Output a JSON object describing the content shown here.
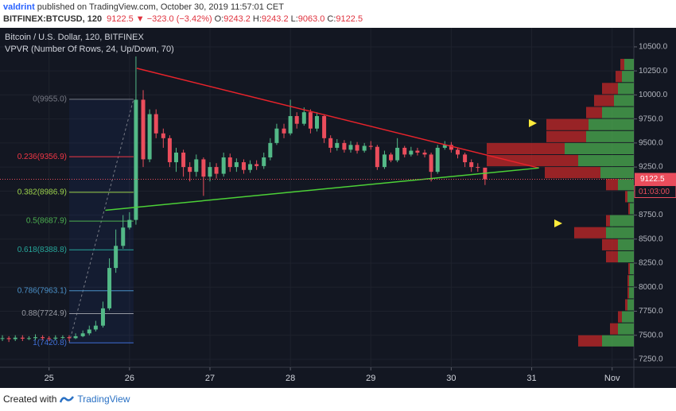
{
  "header": {
    "author": "valdrint",
    "published": "published on TradingView.com, October 30, 2019 11:57:01 CET",
    "symbol": "BITFINEX:BTCUSD, 120",
    "last": "9122.5",
    "direction": "▼",
    "change": "−323.0 (−3.42%)",
    "ohlc": [
      {
        "key": "O:",
        "value": "9243.2"
      },
      {
        "key": "H:",
        "value": "9243.2"
      },
      {
        "key": "L:",
        "value": "9063.0"
      },
      {
        "key": "C:",
        "value": "9122.5"
      }
    ]
  },
  "chart_data": {
    "type": "candlestick",
    "title": "Bitcoin / U.S. Dollar, 120, BITFINEX",
    "indicator": "VPVR (Number Of Rows, 24, Up/Down, 70)",
    "countdown": "01:03:00",
    "xlim": [
      24.39,
      32.27
    ],
    "ylim": [
      7167,
      10698
    ],
    "grid": true,
    "xticks": [
      25,
      26,
      27,
      28,
      29,
      30,
      31,
      {
        "value": 32,
        "label": "Nov"
      }
    ],
    "yticks": [
      {
        "value": 7250,
        "label": "7250.0"
      },
      {
        "value": 7500,
        "label": "7500.0"
      },
      {
        "value": 7750,
        "label": "7750.0"
      },
      {
        "value": 8000,
        "label": "8000.0"
      },
      {
        "value": 8250,
        "label": "8250.0"
      },
      {
        "value": 8500,
        "label": "8500.0"
      },
      {
        "value": 8750,
        "label": "8750.0"
      },
      {
        "value": 9000,
        "label": "9000.0"
      },
      {
        "value": 9250,
        "label": "9250.0"
      },
      {
        "value": 9500,
        "label": "9500.0"
      },
      {
        "value": 9750,
        "label": "9750.0"
      },
      {
        "value": 10000,
        "label": "10000.0"
      },
      {
        "value": 10250,
        "label": "10250.0"
      },
      {
        "value": 10500,
        "label": "10500.0"
      }
    ],
    "series": [
      {
        "name": "BTCUSD",
        "up_color": "#53b987",
        "down_color": "#eb4d5c",
        "x": [
          24.42,
          24.5,
          24.58,
          24.67,
          24.75,
          24.83,
          24.92,
          25.0,
          25.08,
          25.17,
          25.25,
          25.33,
          25.42,
          25.5,
          25.58,
          25.67,
          25.75,
          25.83,
          25.92,
          26.0,
          26.08,
          26.17,
          26.25,
          26.33,
          26.42,
          26.5,
          26.58,
          26.67,
          26.75,
          26.83,
          26.92,
          27.0,
          27.08,
          27.17,
          27.25,
          27.33,
          27.42,
          27.5,
          27.58,
          27.67,
          27.75,
          27.83,
          27.92,
          28.0,
          28.08,
          28.17,
          28.25,
          28.33,
          28.42,
          28.5,
          28.58,
          28.67,
          28.75,
          28.83,
          28.92,
          29.0,
          29.08,
          29.17,
          29.25,
          29.33,
          29.42,
          29.5,
          29.58,
          29.67,
          29.75,
          29.83,
          29.92,
          30.0,
          30.08,
          30.17,
          30.25,
          30.33,
          30.42
        ],
        "open": [
          7465,
          7470,
          7460,
          7475,
          7465,
          7470,
          7480,
          7470,
          7465,
          7475,
          7480,
          7470,
          7490,
          7520,
          7560,
          7600,
          7780,
          8200,
          8430,
          8620,
          8700,
          9950,
          9330,
          9800,
          9600,
          9550,
          9300,
          9400,
          9250,
          9200,
          9330,
          9150,
          9250,
          9180,
          9350,
          9250,
          9300,
          9220,
          9280,
          9260,
          9350,
          9500,
          9650,
          9600,
          9780,
          9700,
          9820,
          9650,
          9780,
          9550,
          9450,
          9500,
          9430,
          9480,
          9420,
          9470,
          9460,
          9250,
          9380,
          9320,
          9450,
          9380,
          9420,
          9400,
          9380,
          9200,
          9450,
          9480,
          9430,
          9380,
          9300,
          9250,
          9243.2
        ],
        "high": [
          7500,
          7490,
          7500,
          7500,
          7490,
          7510,
          7500,
          7490,
          7500,
          7500,
          7500,
          7520,
          7550,
          7600,
          7650,
          7850,
          8300,
          8600,
          8750,
          8780,
          10400,
          10050,
          9850,
          9850,
          9650,
          9580,
          9450,
          9430,
          9300,
          9380,
          9350,
          9300,
          9290,
          9400,
          9390,
          9340,
          9330,
          9320,
          9320,
          9400,
          9550,
          9700,
          9700,
          9950,
          9820,
          9870,
          9850,
          9820,
          9800,
          9580,
          9540,
          9530,
          9520,
          9510,
          9500,
          9520,
          9480,
          9420,
          9400,
          9550,
          9470,
          9460,
          9450,
          9430,
          9400,
          9480,
          9520,
          9510,
          9450,
          9400,
          9330,
          9290,
          9243.2
        ],
        "low": [
          7440,
          7430,
          7440,
          7440,
          7450,
          7450,
          7450,
          7440,
          7450,
          7460,
          7440,
          7460,
          7480,
          7500,
          7540,
          7580,
          7760,
          8150,
          8400,
          8600,
          8650,
          9250,
          9300,
          9550,
          9450,
          9250,
          9200,
          9150,
          9100,
          9150,
          8950,
          9100,
          9130,
          9150,
          9200,
          9200,
          9180,
          9190,
          9220,
          9230,
          9320,
          9480,
          9550,
          9580,
          9650,
          9680,
          9600,
          9620,
          9500,
          9400,
          9420,
          9400,
          9400,
          9390,
          9400,
          9430,
          9220,
          9230,
          9300,
          9300,
          9350,
          9360,
          9370,
          9350,
          9100,
          9180,
          9430,
          9400,
          9340,
          9250,
          9200,
          9200,
          9063
        ],
        "close": [
          7470,
          7460,
          7475,
          7465,
          7470,
          7480,
          7470,
          7465,
          7475,
          7480,
          7470,
          7490,
          7520,
          7560,
          7600,
          7780,
          8200,
          8430,
          8620,
          8700,
          9950,
          9330,
          9800,
          9600,
          9550,
          9300,
          9400,
          9250,
          9200,
          9330,
          9150,
          9250,
          9180,
          9350,
          9250,
          9300,
          9220,
          9280,
          9260,
          9350,
          9500,
          9650,
          9600,
          9780,
          9700,
          9820,
          9650,
          9780,
          9550,
          9450,
          9500,
          9430,
          9480,
          9420,
          9470,
          9460,
          9250,
          9380,
          9320,
          9450,
          9380,
          9420,
          9400,
          9380,
          9200,
          9450,
          9480,
          9430,
          9380,
          9300,
          9250,
          9243.2,
          9122.5
        ]
      }
    ],
    "fib_levels": [
      {
        "label": "0(9955.0)",
        "value": 9955.0,
        "color": "#787b86"
      },
      {
        "label": "0.236(9356.9)",
        "value": 9356.9,
        "color": "#f23645"
      },
      {
        "label": "0.382(8986.9)",
        "value": 8986.9,
        "color": "#9bd14b"
      },
      {
        "label": "0.5(8687.9)",
        "value": 8687.9,
        "color": "#4caf50"
      },
      {
        "label": "0.618(8388.8)",
        "value": 8388.8,
        "color": "#26a69a"
      },
      {
        "label": "0.786(7963.1)",
        "value": 7963.1,
        "color": "#4a90c8"
      },
      {
        "label": "0.88(7724.9)",
        "value": 7724.9,
        "color": "#9598a1"
      },
      {
        "label": "1(7420.8)",
        "value": 7420.8,
        "color": "#3f6fd8"
      }
    ],
    "fib_range": [
      25.25,
      26.05
    ],
    "trend_lines": [
      {
        "color": "#e8232b",
        "points": [
          [
            26.09,
            10277
          ],
          [
            31.09,
            9240
          ]
        ]
      },
      {
        "color": "#4cd137",
        "points": [
          [
            25.7,
            8800
          ],
          [
            31.09,
            9240
          ]
        ]
      }
    ],
    "volume_profile": {
      "up_color": "#4caf50",
      "down_color": "#c62828",
      "rows": [
        {
          "price": 7375,
          "up": 40,
          "down": 30
        },
        {
          "price": 7500,
          "up": 20,
          "down": 10
        },
        {
          "price": 7625,
          "up": 15,
          "down": 5
        },
        {
          "price": 7750,
          "up": 8,
          "down": 3
        },
        {
          "price": 7875,
          "up": 6,
          "down": 2
        },
        {
          "price": 8000,
          "up": 6,
          "down": 2
        },
        {
          "price": 8125,
          "up": 5,
          "down": 2
        },
        {
          "price": 8250,
          "up": 20,
          "down": 15
        },
        {
          "price": 8375,
          "up": 20,
          "down": 20
        },
        {
          "price": 8500,
          "up": 35,
          "down": 40
        },
        {
          "price": 8625,
          "up": 30,
          "down": 5
        },
        {
          "price": 8750,
          "up": 5,
          "down": 2
        },
        {
          "price": 8875,
          "up": 8,
          "down": 3
        },
        {
          "price": 9000,
          "up": 20,
          "down": 15
        },
        {
          "price": 9125,
          "up": 42,
          "down": 70
        },
        {
          "price": 9250,
          "up": 70,
          "down": 115
        },
        {
          "price": 9375,
          "up": 87,
          "down": 98
        },
        {
          "price": 9500,
          "up": 60,
          "down": 50
        },
        {
          "price": 9625,
          "up": 57,
          "down": 53
        },
        {
          "price": 9750,
          "up": 40,
          "down": 20
        },
        {
          "price": 9875,
          "up": 25,
          "down": 25
        },
        {
          "price": 10000,
          "up": 20,
          "down": 20
        },
        {
          "price": 10125,
          "up": 15,
          "down": 8
        },
        {
          "price": 10250,
          "up": 12,
          "down": 5
        }
      ]
    }
  },
  "footer": {
    "created": "Created with",
    "brand": "TradingView"
  }
}
